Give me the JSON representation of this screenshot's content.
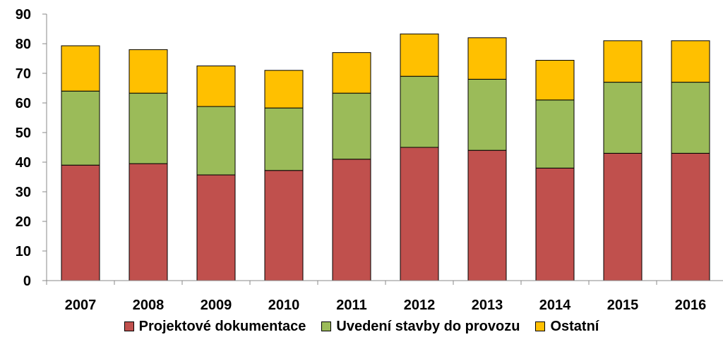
{
  "chart_data": {
    "type": "bar",
    "stacked": true,
    "categories": [
      "2007",
      "2008",
      "2009",
      "2010",
      "2011",
      "2012",
      "2013",
      "2014",
      "2015",
      "2016"
    ],
    "series": [
      {
        "name": "Projektové dokumentace",
        "color": "#C0504D",
        "values": [
          39,
          39.5,
          35.7,
          37.2,
          41,
          45,
          44,
          38,
          43,
          43
        ]
      },
      {
        "name": "Uvedení stavby do provozu",
        "color": "#9BBB59",
        "values": [
          25,
          23.8,
          23.1,
          21.1,
          22.3,
          24,
          24,
          23,
          24,
          24
        ]
      },
      {
        "name": "Ostatní",
        "color": "#FFC000",
        "values": [
          15.3,
          14.7,
          13.7,
          12.7,
          13.7,
          14.3,
          14,
          13.4,
          14,
          14
        ]
      }
    ],
    "yticks": [
      0,
      10,
      20,
      30,
      40,
      50,
      60,
      70,
      80,
      90
    ],
    "ylim": [
      0,
      90
    ],
    "title": "",
    "xlabel": "",
    "ylabel": "",
    "legend": "bottom",
    "grid": false
  }
}
